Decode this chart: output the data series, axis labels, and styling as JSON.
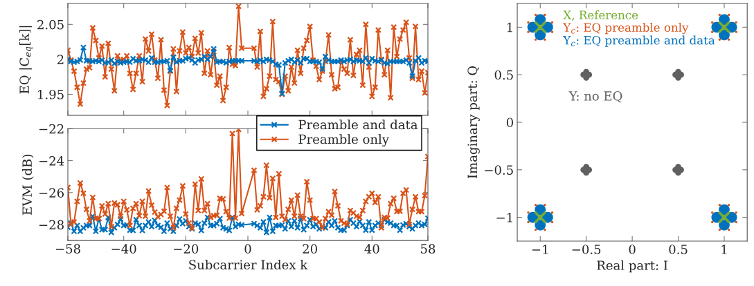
{
  "chart_data": [
    {
      "type": "line",
      "ylabel": "EQ |C$_{eq}$[k]|",
      "marker": "cross",
      "line_style": "solid",
      "tick_labels": "y",
      "grid": false,
      "x": [
        -58,
        -57,
        -56,
        -55,
        -54,
        -53,
        -52,
        -51,
        -50,
        -49,
        -48,
        -47,
        -46,
        -45,
        -44,
        -43,
        -42,
        -41,
        -40,
        -39,
        -38,
        -37,
        -36,
        -35,
        -34,
        -33,
        -32,
        -31,
        -30,
        -29,
        -28,
        -27,
        -26,
        -25,
        -24,
        -23,
        -22,
        -21,
        -20,
        -19,
        -18,
        -17,
        -16,
        -15,
        -14,
        -13,
        -12,
        -11,
        -10,
        -9,
        -8,
        -7,
        -6,
        -5,
        -4,
        -3,
        -2,
        2,
        3,
        4,
        5,
        6,
        7,
        8,
        9,
        10,
        11,
        12,
        13,
        14,
        15,
        16,
        17,
        18,
        19,
        20,
        21,
        22,
        23,
        24,
        25,
        26,
        27,
        28,
        29,
        30,
        31,
        32,
        33,
        34,
        35,
        36,
        37,
        38,
        39,
        40,
        41,
        42,
        43,
        44,
        45,
        46,
        47,
        48,
        49,
        50,
        51,
        52,
        53,
        54,
        55,
        56,
        57,
        58
      ],
      "xlim": [
        -58,
        58
      ],
      "xticks": [
        -58,
        -40,
        -20,
        0,
        20,
        40,
        58
      ],
      "ylim": [
        1.92,
        2.08
      ],
      "yticks": [
        1.95,
        2,
        2.05
      ],
      "series": [
        {
          "color": "#d95319",
          "values": [
            2.013,
            1.999,
            1.983,
            1.96,
            1.936,
            1.966,
            1.986,
            1.988,
            2.045,
            2.027,
            2.002,
            2.019,
            1.975,
            2.023,
            1.986,
            1.955,
            2.005,
            1.999,
            2.0,
            2.005,
            1.98,
            1.957,
            1.98,
            2.005,
            1.968,
            2.029,
            2.012,
            2.036,
            1.999,
            1.973,
            2.028,
            1.956,
            1.934,
            1.983,
            2.015,
            1.954,
            2.012,
            2.039,
            2.009,
            2.017,
            2.004,
            2.03,
            2.009,
            2.038,
            1.98,
            2.012,
            1.978,
            2.011,
            1.963,
            1.976,
            1.941,
            1.96,
            2.017,
            1.993,
            1.991,
            2.076,
            2.016,
            2.016,
            1.989,
            2.04,
            1.947,
            1.958,
            1.976,
            2.054,
            1.971,
            1.968,
            1.95,
            1.976,
            1.955,
            1.989,
            1.966,
            2.013,
            1.98,
            2.016,
            2.027,
            2.047,
            1.999,
            1.99,
            1.971,
            1.983,
            1.997,
            2.035,
            1.978,
            1.958,
            1.96,
            1.998,
            1.986,
            1.98,
            2.028,
            1.977,
            2.007,
            2.013,
            1.963,
            2.05,
            1.989,
            1.947,
            1.96,
            2.042,
            2.0,
            1.978,
            2.013,
            1.945,
            2.046,
            2.004,
            2.029,
            2.042,
            2.053,
            2.002,
            1.973,
            2.047,
            1.971,
            1.983,
            1.952,
            1.981
          ]
        },
        {
          "color": "#0072bd",
          "values": [
            2.0,
            1.997,
            1.996,
            1.997,
            1.999,
            2.017,
            1.998,
            1.998,
            1.997,
            1.998,
            1.997,
            1.999,
            1.995,
            1.996,
            1.999,
            1.994,
            1.997,
            1.995,
            1.996,
            1.997,
            1.996,
            2.001,
            1.998,
            1.998,
            2.0,
            1.999,
            1.996,
            2.002,
            1.996,
            1.996,
            1.997,
            1.997,
            1.998,
            1.984,
            2.003,
            1.996,
            1.998,
            1.998,
            2.001,
            2.002,
            1.999,
            1.995,
            1.999,
            2.0,
            2.004,
            2.0,
            2.004,
            2.015,
            1.996,
            1.997,
            1.997,
            1.995,
            1.997,
            1.998,
            1.998,
            1.998,
            1.998,
            1.998,
            1.997,
            1.999,
            1.997,
            2.0,
            1.999,
            1.997,
            1.993,
            1.992,
            1.951,
            1.995,
            1.998,
            2.0,
            1.996,
            1.999,
            1.995,
            2.001,
            2.001,
            1.997,
            1.997,
            1.997,
            1.996,
            1.986,
            2.004,
            1.999,
            1.997,
            1.997,
            1.997,
            1.999,
            1.997,
            1.999,
            2.0,
            1.997,
            1.999,
            1.998,
            1.997,
            2.002,
            1.995,
            2.001,
            1.998,
            1.997,
            1.999,
            1.995,
            1.994,
            1.997,
            1.997,
            1.997,
            1.997,
            1.997,
            1.999,
            1.995,
            1.976,
            1.998,
            2.002,
            1.995,
            1.998,
            1.997
          ]
        }
      ]
    },
    {
      "type": "line",
      "xlabel": "Subcarrier Index k",
      "ylabel": "EVM (dB)",
      "marker": "cross",
      "line_style": "solid",
      "legend": "top right",
      "grid": false,
      "x": [
        -58,
        -57,
        -56,
        -55,
        -54,
        -53,
        -52,
        -51,
        -50,
        -49,
        -48,
        -47,
        -46,
        -45,
        -44,
        -43,
        -42,
        -41,
        -40,
        -39,
        -38,
        -37,
        -36,
        -35,
        -34,
        -33,
        -32,
        -31,
        -30,
        -29,
        -28,
        -27,
        -26,
        -25,
        -24,
        -23,
        -22,
        -21,
        -20,
        -19,
        -18,
        -17,
        -16,
        -15,
        -14,
        -13,
        -12,
        -11,
        -10,
        -9,
        -8,
        -7,
        -6,
        -5,
        -4,
        -3,
        -2,
        2,
        3,
        4,
        5,
        6,
        7,
        8,
        9,
        10,
        11,
        12,
        13,
        14,
        15,
        16,
        17,
        18,
        19,
        20,
        21,
        22,
        23,
        24,
        25,
        26,
        27,
        28,
        29,
        30,
        31,
        32,
        33,
        34,
        35,
        36,
        37,
        38,
        39,
        40,
        41,
        42,
        43,
        44,
        45,
        46,
        47,
        48,
        49,
        50,
        51,
        52,
        53,
        54,
        55,
        56,
        57,
        58
      ],
      "xlim": [
        -58,
        58
      ],
      "xticks": [
        {
          "value": -58,
          "label": "−58"
        },
        {
          "value": -40,
          "label": "−40"
        },
        {
          "value": -20,
          "label": "−20"
        },
        0,
        20,
        40,
        58
      ],
      "ylim": [
        -29,
        -22
      ],
      "yticks": [
        {
          "value": -28,
          "label": "−28"
        },
        {
          "value": -26,
          "label": "−26"
        },
        {
          "value": -24,
          "label": "−24"
        },
        {
          "value": -22,
          "label": "−22"
        }
      ],
      "series": [
        {
          "name": "Preamble and data",
          "color": "#0072bd",
          "values": [
            -28.17,
            -27.91,
            -28.42,
            -28.06,
            -28.42,
            -28.2,
            -28.06,
            -28.06,
            -27.48,
            -28.42,
            -27.63,
            -28.32,
            -28.32,
            -27.55,
            -28.49,
            -28.2,
            -27.99,
            -27.65,
            -28.06,
            -28.03,
            -28.35,
            -28.37,
            -27.7,
            -28.06,
            -28.37,
            -28.06,
            -27.84,
            -28.13,
            -27.74,
            -28.06,
            -28.17,
            -28.42,
            -27.91,
            -28.27,
            -28.42,
            -28.06,
            -27.65,
            -27.94,
            -27.77,
            -28.13,
            -28.27,
            -27.91,
            -27.99,
            -28.37,
            -27.91,
            -27.55,
            -28.06,
            -28.06,
            -27.94,
            -27.63,
            -28.2,
            -28.27,
            -28.37,
            -27.55,
            -28.13,
            -27.99,
            -28.03,
            -27.94,
            -28.06,
            -28.2,
            -27.84,
            -28.49,
            -27.55,
            -28.42,
            -28.06,
            -28.06,
            -28.03,
            -28.27,
            -27.77,
            -28.13,
            -27.77,
            -28.2,
            -27.63,
            -28.32,
            -28.06,
            -27.7,
            -28.13,
            -27.99,
            -28.27,
            -28.13,
            -28.2,
            -27.84,
            -28.06,
            -27.77,
            -28.2,
            -28.35,
            -28.35,
            -28.06,
            -27.7,
            -27.91,
            -28.13,
            -27.81,
            -28.06,
            -28.35,
            -27.84,
            -28.35,
            -28.06,
            -27.91,
            -28.06,
            -27.7,
            -27.84,
            -27.91,
            -28.06,
            -28.06,
            -28.35,
            -28.03,
            -27.94,
            -28.13,
            -28.27,
            -28.06,
            -27.91,
            -28.06,
            -27.99,
            -27.6
          ]
        },
        {
          "name": "Preamble only",
          "color": "#d95319",
          "values": [
            -25.68,
            -27.99,
            -27.84,
            -26.55,
            -25.4,
            -26.04,
            -27.05,
            -27.77,
            -26.3,
            -27.63,
            -27.63,
            -26.83,
            -27.34,
            -26.69,
            -28.13,
            -26.65,
            -26.76,
            -27.48,
            -26.55,
            -27.08,
            -28.06,
            -26.98,
            -26.69,
            -27.45,
            -26.55,
            -27.48,
            -25.9,
            -26.79,
            -27.22,
            -27.51,
            -27.37,
            -27.17,
            -25.68,
            -27.48,
            -28.2,
            -26.98,
            -26.47,
            -25.58,
            -27.34,
            -27.91,
            -28.23,
            -25.47,
            -27.12,
            -25.14,
            -27.12,
            -26.69,
            -27.55,
            -27.45,
            -27.41,
            -26.36,
            -26.4,
            -27.19,
            -27.6,
            -22.3,
            -27.6,
            -22.04,
            -27.31,
            -24.6,
            -27.08,
            -26.83,
            -26.26,
            -24.29,
            -26.33,
            -25.11,
            -27.55,
            -24.82,
            -27.48,
            -27.7,
            -27.05,
            -26.47,
            -27.48,
            -26.16,
            -27.48,
            -27.63,
            -25.32,
            -26.47,
            -27.63,
            -27.63,
            -27.84,
            -28.2,
            -27.63,
            -27.19,
            -27.41,
            -25.93,
            -26.83,
            -27.77,
            -27.91,
            -27.99,
            -27.12,
            -27.27,
            -27.48,
            -27.55,
            -27.12,
            -26.55,
            -26.26,
            -26.04,
            -26.62,
            -26.26,
            -28.2,
            -27.55,
            -27.6,
            -26.69,
            -26.36,
            -27.19,
            -27.17,
            -26.04,
            -25.84,
            -27.99,
            -27.05,
            -26.26,
            -27.19,
            -27.19,
            -26.19,
            -23.74
          ]
        }
      ]
    },
    {
      "type": "scatter",
      "xlabel": "Real part: I",
      "ylabel": "Imaginary part: Q",
      "legend": "top",
      "grid": false,
      "xlim": [
        -1.25,
        1.25
      ],
      "xticks": [
        {
          "value": -1,
          "label": "−1"
        },
        {
          "value": -0.5,
          "label": "−0.5"
        },
        0,
        0.5,
        1
      ],
      "ylim": [
        -1.25,
        1.25
      ],
      "yticks": [
        {
          "value": -1,
          "label": "−1"
        },
        {
          "value": -0.5,
          "label": "−0.5"
        },
        0,
        0.5,
        1
      ],
      "series": [
        {
          "name": "X, Reference",
          "color": "#77ac30",
          "marker": "cross",
          "x": [
            -1,
            1,
            -1,
            1
          ],
          "values": [
            1,
            1,
            -1,
            -1
          ]
        },
        {
          "name": "Y$_{c}$: EQ preamble only",
          "color": "#d95319",
          "marker": "circle",
          "x": [
            -0.87,
            -0.95,
            -1.05,
            -1.13,
            -1.13,
            -1.05,
            -0.95,
            -0.87,
            1.13,
            1.05,
            0.95,
            0.87,
            0.87,
            0.95,
            1.05,
            1.13,
            -0.87,
            -0.95,
            -1.05,
            -1.13,
            -1.13,
            -1.05,
            -0.95,
            -0.87,
            1.13,
            1.05,
            0.95,
            0.87,
            0.87,
            0.95,
            1.05,
            1.13
          ],
          "values": [
            1.05,
            1.13,
            1.13,
            1.05,
            0.95,
            0.87,
            0.87,
            0.95,
            1.05,
            1.13,
            1.13,
            1.05,
            0.95,
            0.87,
            0.87,
            0.95,
            -0.95,
            -0.87,
            -0.87,
            -0.95,
            -1.05,
            -1.13,
            -1.13,
            -1.05,
            -0.95,
            -0.87,
            -0.87,
            -0.95,
            -1.05,
            -1.13,
            -1.13,
            -1.05
          ]
        },
        {
          "name": "Y$_{c}$: EQ preamble and data",
          "color": "#0072bd",
          "marker": "circle",
          "x": [
            -0.92,
            -1,
            -1.08,
            -1,
            1.08,
            1,
            0.92,
            1,
            -0.92,
            -1,
            -1.08,
            -1,
            1.08,
            1,
            0.92,
            1
          ],
          "values": [
            1,
            1.08,
            1,
            0.92,
            1,
            1.08,
            1,
            0.92,
            -1,
            -0.92,
            -1,
            -1.08,
            -1,
            -0.92,
            -1,
            -1.08
          ]
        },
        {
          "name": "Y: no EQ",
          "color": "#606060",
          "marker": "circle",
          "x": [
            -0.5,
            -0.47,
            -0.53,
            -0.5,
            0.53,
            0.5,
            0.47,
            0.5,
            -0.47,
            -0.5,
            -0.53,
            -0.5,
            0.53,
            0.5,
            0.47,
            0.5
          ],
          "values": [
            0.47,
            0.5,
            0.5,
            0.53,
            0.5,
            0.53,
            0.5,
            0.47,
            -0.5,
            -0.47,
            -0.5,
            -0.53,
            -0.5,
            -0.47,
            -0.5,
            -0.53
          ]
        }
      ]
    }
  ]
}
